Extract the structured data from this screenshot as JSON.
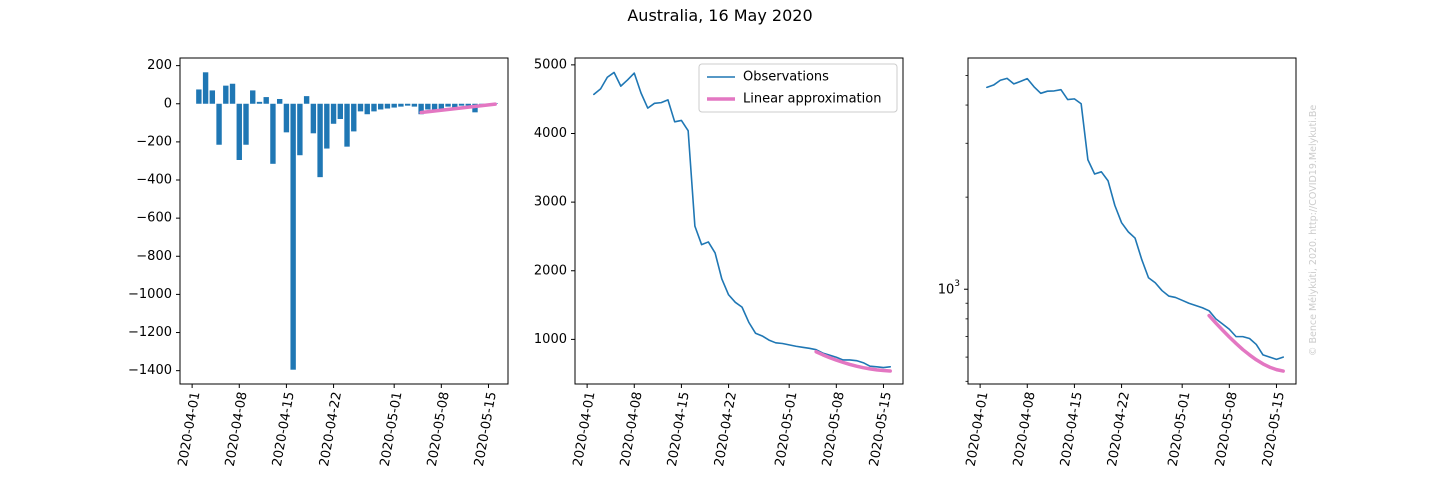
{
  "title": "Australia, 16 May 2020",
  "watermark": "© Bence Mélykúti, 2020. http://COVID19.Melykuti.Be",
  "colors": {
    "observations": "#1f77b4",
    "approximation": "#e377c2"
  },
  "chart_data": [
    {
      "type": "bar",
      "title": "",
      "xlabel": "",
      "ylabel": "",
      "x_ticks": [
        "2020-04-01",
        "2020-04-08",
        "2020-04-15",
        "2020-04-22",
        "2020-05-01",
        "2020-05-08",
        "2020-05-15"
      ],
      "y_ticks": [
        "200",
        "0",
        "−200",
        "−400",
        "−600",
        "−800",
        "−1000",
        "−1200",
        "−1400"
      ],
      "ylim": [
        -1470,
        240
      ],
      "grid": false,
      "dates": [
        "2020-04-02",
        "2020-04-03",
        "2020-04-04",
        "2020-04-05",
        "2020-04-06",
        "2020-04-07",
        "2020-04-08",
        "2020-04-09",
        "2020-04-10",
        "2020-04-11",
        "2020-04-12",
        "2020-04-13",
        "2020-04-14",
        "2020-04-15",
        "2020-04-16",
        "2020-04-17",
        "2020-04-18",
        "2020-04-19",
        "2020-04-20",
        "2020-04-21",
        "2020-04-22",
        "2020-04-23",
        "2020-04-24",
        "2020-04-25",
        "2020-04-26",
        "2020-04-27",
        "2020-04-28",
        "2020-04-29",
        "2020-04-30",
        "2020-05-01",
        "2020-05-02",
        "2020-05-03",
        "2020-05-04",
        "2020-05-05",
        "2020-05-06",
        "2020-05-07",
        "2020-05-08",
        "2020-05-09",
        "2020-05-10",
        "2020-05-11",
        "2020-05-12",
        "2020-05-13",
        "2020-05-14",
        "2020-05-15",
        "2020-05-16"
      ],
      "values": [
        75,
        165,
        70,
        -215,
        95,
        105,
        -295,
        -215,
        70,
        10,
        35,
        -315,
        25,
        -150,
        -1395,
        -270,
        40,
        -155,
        -385,
        -235,
        -105,
        -80,
        -225,
        -145,
        -40,
        -55,
        -40,
        -30,
        -25,
        -20,
        -15,
        -10,
        -15,
        -55,
        -30,
        -30,
        -30,
        -15,
        -20,
        -10,
        -10,
        -45,
        -10,
        -5,
        2
      ],
      "series": [
        {
          "name": "Linear approximation",
          "x": [
            "2020-05-05",
            "2020-05-16"
          ],
          "y": [
            -46,
            -2
          ]
        }
      ]
    },
    {
      "type": "line",
      "title": "",
      "xlabel": "",
      "ylabel": "",
      "x_ticks": [
        "2020-04-01",
        "2020-04-08",
        "2020-04-15",
        "2020-04-22",
        "2020-05-01",
        "2020-05-08",
        "2020-05-15"
      ],
      "y_ticks": [
        "5000",
        "4000",
        "3000",
        "2000",
        "1000"
      ],
      "ylim": [
        350,
        5100
      ],
      "grid": false,
      "legend": {
        "placement": "top-right",
        "entries": [
          "Observations",
          "Linear approximation"
        ]
      },
      "series": [
        {
          "name": "Observations",
          "x": [
            "2020-04-02",
            "2020-04-03",
            "2020-04-04",
            "2020-04-05",
            "2020-04-06",
            "2020-04-07",
            "2020-04-08",
            "2020-04-09",
            "2020-04-10",
            "2020-04-11",
            "2020-04-12",
            "2020-04-13",
            "2020-04-14",
            "2020-04-15",
            "2020-04-16",
            "2020-04-17",
            "2020-04-18",
            "2020-04-19",
            "2020-04-20",
            "2020-04-21",
            "2020-04-22",
            "2020-04-23",
            "2020-04-24",
            "2020-04-25",
            "2020-04-26",
            "2020-04-27",
            "2020-04-28",
            "2020-04-29",
            "2020-04-30",
            "2020-05-01",
            "2020-05-02",
            "2020-05-03",
            "2020-05-04",
            "2020-05-05",
            "2020-05-06",
            "2020-05-07",
            "2020-05-08",
            "2020-05-09",
            "2020-05-10",
            "2020-05-11",
            "2020-05-12",
            "2020-05-13",
            "2020-05-14",
            "2020-05-15",
            "2020-05-16"
          ],
          "y": [
            4570,
            4650,
            4820,
            4890,
            4690,
            4780,
            4880,
            4590,
            4370,
            4440,
            4450,
            4490,
            4170,
            4190,
            4040,
            2650,
            2380,
            2420,
            2260,
            1880,
            1650,
            1540,
            1470,
            1250,
            1090,
            1050,
            990,
            950,
            940,
            920,
            900,
            885,
            870,
            850,
            800,
            770,
            740,
            700,
            700,
            690,
            660,
            610,
            600,
            590,
            600
          ]
        },
        {
          "name": "Linear approximation",
          "x": [
            "2020-05-05",
            "2020-05-06",
            "2020-05-07",
            "2020-05-08",
            "2020-05-09",
            "2020-05-10",
            "2020-05-11",
            "2020-05-12",
            "2020-05-13",
            "2020-05-14",
            "2020-05-15",
            "2020-05-16"
          ],
          "y": [
            820,
            775,
            735,
            698,
            665,
            635,
            610,
            588,
            570,
            556,
            546,
            540
          ]
        }
      ]
    },
    {
      "type": "line",
      "title": "",
      "xlabel": "",
      "ylabel": "",
      "x_ticks": [
        "2020-04-01",
        "2020-04-08",
        "2020-04-15",
        "2020-04-22",
        "2020-05-01",
        "2020-05-08",
        "2020-05-15"
      ],
      "y_ticks": [
        "10^3"
      ],
      "yscale": "log",
      "ylim": [
        490,
        5700
      ],
      "grid": false,
      "series": [
        {
          "name": "Observations",
          "x": [
            "2020-04-02",
            "2020-04-03",
            "2020-04-04",
            "2020-04-05",
            "2020-04-06",
            "2020-04-07",
            "2020-04-08",
            "2020-04-09",
            "2020-04-10",
            "2020-04-11",
            "2020-04-12",
            "2020-04-13",
            "2020-04-14",
            "2020-04-15",
            "2020-04-16",
            "2020-04-17",
            "2020-04-18",
            "2020-04-19",
            "2020-04-20",
            "2020-04-21",
            "2020-04-22",
            "2020-04-23",
            "2020-04-24",
            "2020-04-25",
            "2020-04-26",
            "2020-04-27",
            "2020-04-28",
            "2020-04-29",
            "2020-04-30",
            "2020-05-01",
            "2020-05-02",
            "2020-05-03",
            "2020-05-04",
            "2020-05-05",
            "2020-05-06",
            "2020-05-07",
            "2020-05-08",
            "2020-05-09",
            "2020-05-10",
            "2020-05-11",
            "2020-05-12",
            "2020-05-13",
            "2020-05-14",
            "2020-05-15",
            "2020-05-16"
          ],
          "y": [
            4570,
            4650,
            4820,
            4890,
            4690,
            4780,
            4880,
            4590,
            4370,
            4440,
            4450,
            4490,
            4170,
            4190,
            4040,
            2650,
            2380,
            2420,
            2260,
            1880,
            1650,
            1540,
            1470,
            1250,
            1090,
            1050,
            990,
            950,
            940,
            920,
            900,
            885,
            870,
            850,
            800,
            770,
            740,
            700,
            700,
            690,
            660,
            610,
            600,
            590,
            600
          ]
        },
        {
          "name": "Linear approximation",
          "x": [
            "2020-05-05",
            "2020-05-06",
            "2020-05-07",
            "2020-05-08",
            "2020-05-09",
            "2020-05-10",
            "2020-05-11",
            "2020-05-12",
            "2020-05-13",
            "2020-05-14",
            "2020-05-15",
            "2020-05-16"
          ],
          "y": [
            820,
            775,
            735,
            698,
            665,
            635,
            610,
            588,
            570,
            556,
            546,
            540
          ]
        }
      ]
    }
  ]
}
